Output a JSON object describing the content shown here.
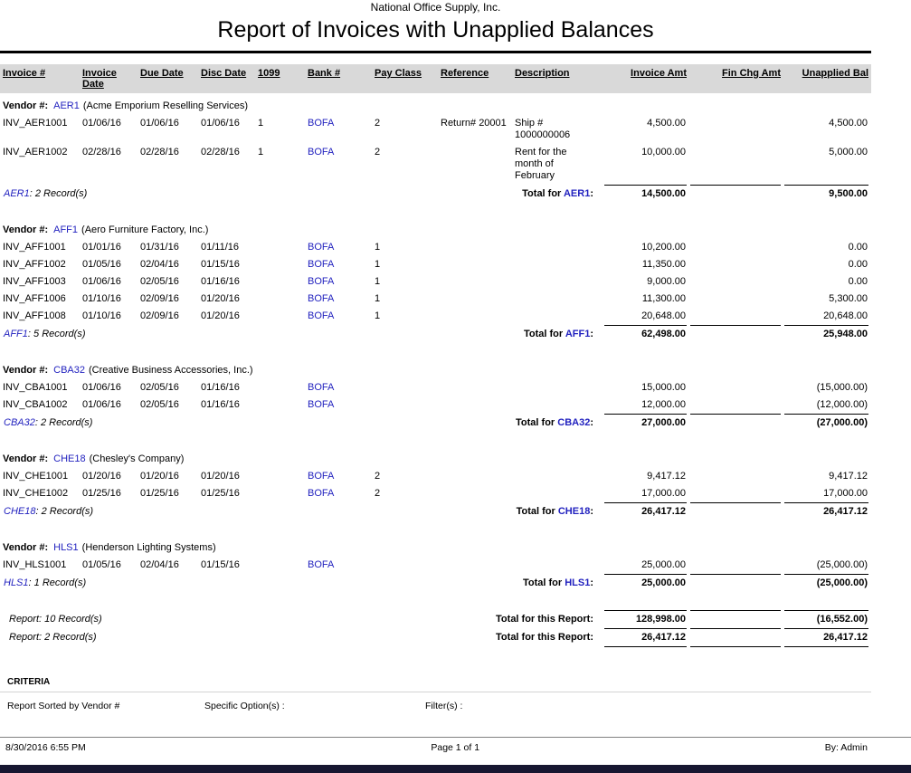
{
  "report": {
    "company": "National Office Supply, Inc.",
    "title": "Report of Invoices with Unapplied Balances",
    "columns": [
      "Invoice #",
      "Invoice Date",
      "Due Date",
      "Disc Date",
      "1099",
      "Bank #",
      "Pay Class",
      "Reference",
      "Description",
      "Invoice Amt",
      "Fin Chg Amt",
      "Unapplied Bal"
    ],
    "labels": {
      "vendor_prefix": "Vendor #:",
      "total_prefix": "Total for"
    },
    "vendors": [
      {
        "code": "AER1",
        "name": "(Acme Emporium Reselling Services)",
        "records": "2 Record(s)",
        "rows": [
          [
            "INV_AER1001",
            "01/06/16",
            "01/06/16",
            "01/06/16",
            "1",
            "BOFA",
            "2",
            "Return# 20001",
            "Ship # 1000000006",
            "4,500.00",
            "",
            "4,500.00"
          ],
          [
            "INV_AER1002",
            "02/28/16",
            "02/28/16",
            "02/28/16",
            "1",
            "BOFA",
            "2",
            "",
            "Rent for the month of February",
            "10,000.00",
            "",
            "5,000.00"
          ]
        ],
        "totals": [
          "14,500.00",
          "",
          "9,500.00"
        ]
      },
      {
        "code": "AFF1",
        "name": "(Aero Furniture Factory, Inc.)",
        "records": "5 Record(s)",
        "rows": [
          [
            "INV_AFF1001",
            "01/01/16",
            "01/31/16",
            "01/11/16",
            "",
            "BOFA",
            "1",
            "",
            "",
            "10,200.00",
            "",
            "0.00"
          ],
          [
            "INV_AFF1002",
            "01/05/16",
            "02/04/16",
            "01/15/16",
            "",
            "BOFA",
            "1",
            "",
            "",
            "11,350.00",
            "",
            "0.00"
          ],
          [
            "INV_AFF1003",
            "01/06/16",
            "02/05/16",
            "01/16/16",
            "",
            "BOFA",
            "1",
            "",
            "",
            "9,000.00",
            "",
            "0.00"
          ],
          [
            "INV_AFF1006",
            "01/10/16",
            "02/09/16",
            "01/20/16",
            "",
            "BOFA",
            "1",
            "",
            "",
            "11,300.00",
            "",
            "5,300.00"
          ],
          [
            "INV_AFF1008",
            "01/10/16",
            "02/09/16",
            "01/20/16",
            "",
            "BOFA",
            "1",
            "",
            "",
            "20,648.00",
            "",
            "20,648.00"
          ]
        ],
        "totals": [
          "62,498.00",
          "",
          "25,948.00"
        ]
      },
      {
        "code": "CBA32",
        "name": "(Creative Business Accessories, Inc.)",
        "records": "2 Record(s)",
        "rows": [
          [
            "INV_CBA1001",
            "01/06/16",
            "02/05/16",
            "01/16/16",
            "",
            "BOFA",
            "",
            "",
            "",
            "15,000.00",
            "",
            "(15,000.00)"
          ],
          [
            "INV_CBA1002",
            "01/06/16",
            "02/05/16",
            "01/16/16",
            "",
            "BOFA",
            "",
            "",
            "",
            "12,000.00",
            "",
            "(12,000.00)"
          ]
        ],
        "totals": [
          "27,000.00",
          "",
          "(27,000.00)"
        ]
      },
      {
        "code": "CHE18",
        "name": "(Chesley's Company)",
        "records": "2 Record(s)",
        "rows": [
          [
            "INV_CHE1001",
            "01/20/16",
            "01/20/16",
            "01/20/16",
            "",
            "BOFA",
            "2",
            "",
            "",
            "9,417.12",
            "",
            "9,417.12"
          ],
          [
            "INV_CHE1002",
            "01/25/16",
            "01/25/16",
            "01/25/16",
            "",
            "BOFA",
            "2",
            "",
            "",
            "17,000.00",
            "",
            "17,000.00"
          ]
        ],
        "totals": [
          "26,417.12",
          "",
          "26,417.12"
        ]
      },
      {
        "code": "HLS1",
        "name": "(Henderson Lighting Systems)",
        "records": "1 Record(s)",
        "rows": [
          [
            "INV_HLS1001",
            "01/05/16",
            "02/04/16",
            "01/15/16",
            "",
            "BOFA",
            "",
            "",
            "",
            "25,000.00",
            "",
            "(25,000.00)"
          ]
        ],
        "totals": [
          "25,000.00",
          "",
          "(25,000.00)"
        ]
      }
    ],
    "summary_rows": [
      {
        "records": "Report: 10 Record(s)",
        "label": "Total for this Report:",
        "amounts": [
          "128,998.00",
          "",
          "(16,552.00)"
        ]
      },
      {
        "records": "Report: 2 Record(s)",
        "label": "Total for this Report:",
        "amounts": [
          "26,417.12",
          "",
          "26,417.12"
        ]
      }
    ],
    "criteria": {
      "heading": "CRITERIA",
      "sorted_by": "Report Sorted by Vendor #",
      "specific_options": "Specific Option(s) :",
      "filters": "Filter(s) :"
    },
    "footer": {
      "datetime": "8/30/2016 6:55 PM",
      "page": "Page 1 of 1",
      "by": "By: Admin"
    },
    "colors": {
      "accent_blue": "#2222bf",
      "header_bar": "#d9d9d9",
      "bottom_bar": "#171731"
    }
  }
}
